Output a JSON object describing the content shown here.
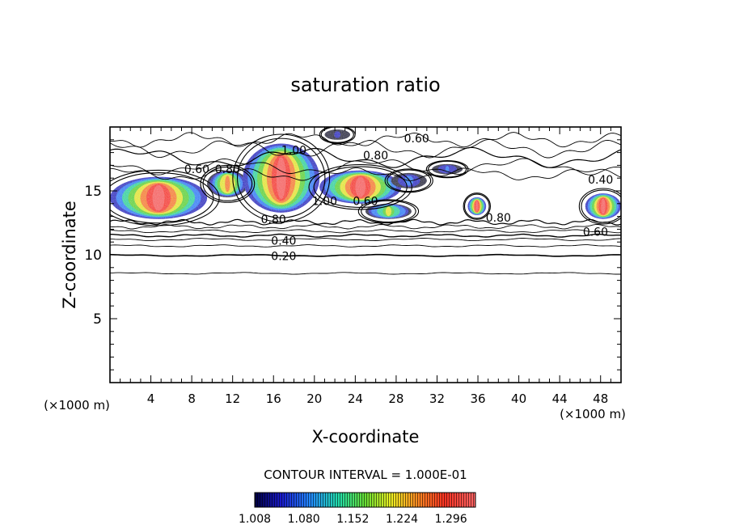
{
  "chart_data": {
    "type": "heatmap",
    "title": "saturation ratio",
    "xlabel": "X-coordinate",
    "ylabel": "Z-coordinate",
    "x_unit": "(×1000 m)",
    "x_unit_right": "(×1000 m)",
    "xlim": [
      0,
      50
    ],
    "ylim": [
      0,
      20
    ],
    "x_ticks": [
      4,
      8,
      12,
      16,
      20,
      24,
      28,
      32,
      36,
      40,
      44,
      48
    ],
    "y_ticks": [
      5,
      10,
      15
    ],
    "contour_interval_label": "CONTOUR INTERVAL = 1.000E-01",
    "contour_labels": [
      {
        "text": "0.60",
        "x": 30.0,
        "y": 19.1
      },
      {
        "text": "1.00",
        "x": 18.0,
        "y": 18.2
      },
      {
        "text": "0.80",
        "x": 26.0,
        "y": 17.8
      },
      {
        "text": "0.60",
        "x": 8.5,
        "y": 16.7
      },
      {
        "text": "0.80",
        "x": 11.5,
        "y": 16.7
      },
      {
        "text": "0.40",
        "x": 48.0,
        "y": 15.9
      },
      {
        "text": "1.00",
        "x": 21.0,
        "y": 14.2
      },
      {
        "text": "0.60",
        "x": 25.0,
        "y": 14.2
      },
      {
        "text": "0.80",
        "x": 16.0,
        "y": 12.8
      },
      {
        "text": "0.80",
        "x": 38.0,
        "y": 12.9
      },
      {
        "text": "0.60",
        "x": 47.5,
        "y": 11.8
      },
      {
        "text": "0.40",
        "x": 17.0,
        "y": 11.1
      },
      {
        "text": "0.20",
        "x": 17.0,
        "y": 9.9
      }
    ],
    "colorbar": {
      "range": [
        1.008,
        1.332
      ],
      "tick_labels": [
        "1.008",
        "1.080",
        "1.152",
        "1.224",
        "1.296"
      ],
      "colors": [
        "#000040",
        "#1a1acc",
        "#2288ff",
        "#22ddaa",
        "#66dd33",
        "#eeee22",
        "#ff8822",
        "#ff3322",
        "#ff6666"
      ]
    },
    "supersaturated_regions": [
      {
        "x_range": [
          0,
          9.5
        ],
        "z_range": [
          12.8,
          16.1
        ],
        "peak": 1.3
      },
      {
        "x_range": [
          9.5,
          13.5
        ],
        "z_range": [
          14.5,
          16.6
        ],
        "peak": 1.25
      },
      {
        "x_range": [
          13.0,
          20.5
        ],
        "z_range": [
          13.3,
          18.7
        ],
        "peak": 1.3
      },
      {
        "x_range": [
          20.5,
          28.5
        ],
        "z_range": [
          14.0,
          16.6
        ],
        "peak": 1.3
      },
      {
        "x_range": [
          27.5,
          31.0
        ],
        "z_range": [
          15.2,
          16.4
        ],
        "peak": 1.1
      },
      {
        "x_range": [
          31.5,
          34.5
        ],
        "z_range": [
          16.3,
          17.1
        ],
        "peak": 1.08
      },
      {
        "x_range": [
          25.0,
          29.5
        ],
        "z_range": [
          12.8,
          14.0
        ],
        "peak": 1.2
      },
      {
        "x_range": [
          35.0,
          36.8
        ],
        "z_range": [
          13.1,
          14.5
        ],
        "peak": 1.3
      },
      {
        "x_range": [
          46.5,
          50.0
        ],
        "z_range": [
          12.8,
          14.8
        ],
        "peak": 1.3
      },
      {
        "x_range": [
          21.0,
          23.5
        ],
        "z_range": [
          19.0,
          19.8
        ],
        "peak": 1.05
      }
    ]
  }
}
